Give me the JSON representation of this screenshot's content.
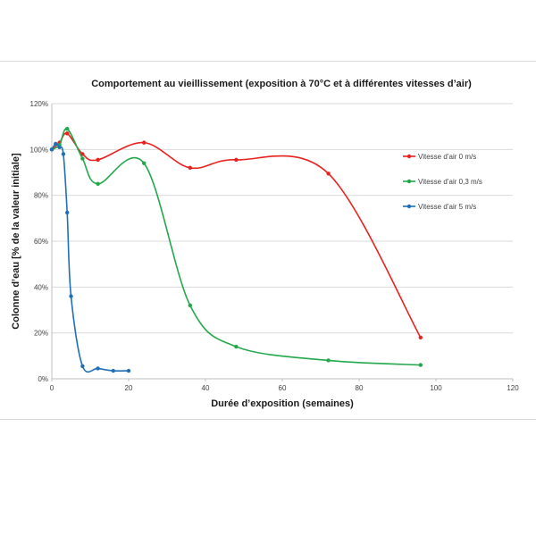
{
  "chart_data": {
    "type": "line",
    "title": "Comportement au vieillissement (exposition à 70°C et à différentes vitesses d’air)",
    "xlabel": "Durée d’exposition (semaines)",
    "ylabel": "Colonne d’eau  [% de la valeur initiale]",
    "xlim": [
      0,
      120
    ],
    "ylim": [
      0,
      1.2
    ],
    "x_ticks": [
      "0",
      "20",
      "40",
      "60",
      "80",
      "100",
      "120"
    ],
    "y_ticks": [
      "0%",
      "20%",
      "40%",
      "60%",
      "80%",
      "100%",
      "120%"
    ],
    "grid": "horizontal",
    "legend_position": "right",
    "series": [
      {
        "name": "Vitesse d’air 0 m/s",
        "color": "#e8211c",
        "x": [
          0,
          2,
          4,
          8,
          12,
          24,
          36,
          48,
          72,
          96
        ],
        "y": [
          1.0,
          1.03,
          1.07,
          0.98,
          0.955,
          1.03,
          0.92,
          0.955,
          0.895,
          0.18
        ]
      },
      {
        "name": "Vitesse d’air 0,3 m/s",
        "color": "#21a84b",
        "x": [
          0,
          2,
          4,
          8,
          12,
          24,
          36,
          48,
          72,
          96
        ],
        "y": [
          1.0,
          1.02,
          1.09,
          0.96,
          0.85,
          0.94,
          0.32,
          0.14,
          0.08,
          0.06
        ]
      },
      {
        "name": "Vitesse d’air 5 m/s",
        "color": "#1f6fb8",
        "x": [
          0,
          1,
          2,
          3,
          4,
          5,
          8,
          12,
          16,
          20
        ],
        "y": [
          1.0,
          1.025,
          1.01,
          0.98,
          0.725,
          0.36,
          0.055,
          0.045,
          0.035,
          0.035
        ]
      }
    ]
  }
}
